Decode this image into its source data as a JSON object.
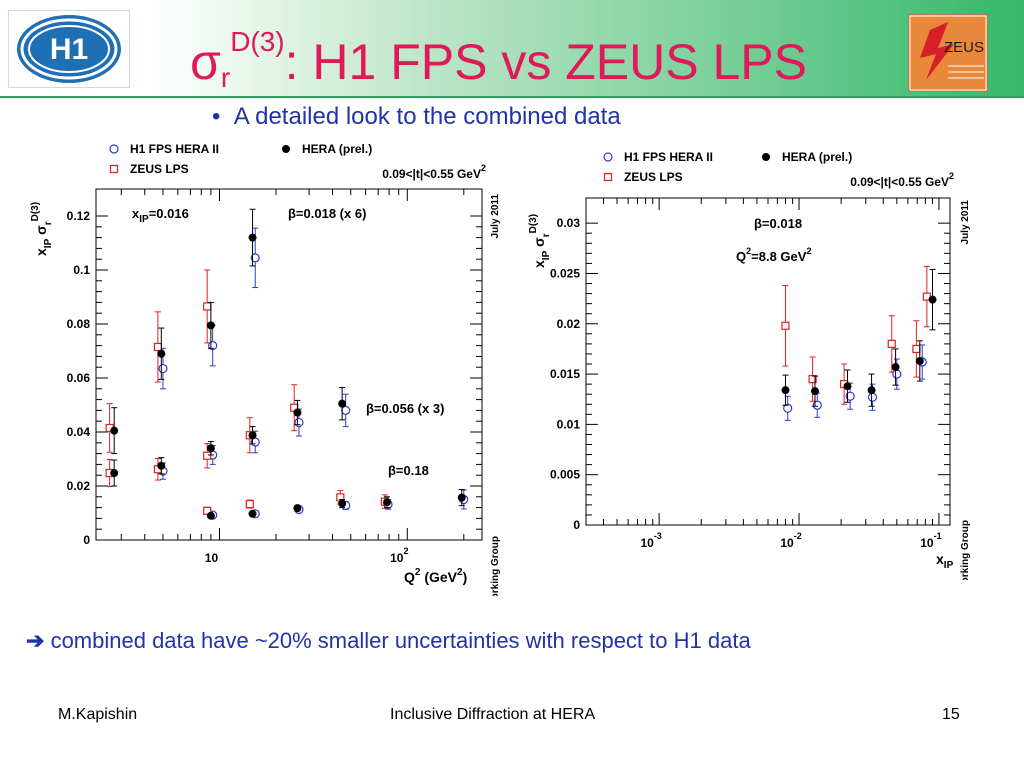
{
  "title": {
    "main": "σ",
    "sub": "r",
    "sup": "D(3)",
    "rest": ": H1 FPS vs ZEUS LPS"
  },
  "logos": {
    "h1": "H1",
    "zeus": "ZEUS"
  },
  "bullet": "A detailed look to the combined data",
  "note": "combined data have ~20% smaller uncertainties with respect to H1 data",
  "footer": {
    "author": "M.Kapishin",
    "center": "Inclusive Diffraction at HERA",
    "page": "15"
  },
  "colors": {
    "title": "#e0195a",
    "text": "#2233aa",
    "h1": "#2a3cc8",
    "zeus": "#e02020",
    "hera": "#000000"
  },
  "chart_data": [
    {
      "type": "scatter",
      "x_scale": "log",
      "xlim": [
        2.2,
        250
      ],
      "ylim": [
        0,
        0.13
      ],
      "y_ticks": [
        0,
        0.02,
        0.04,
        0.06,
        0.08,
        0.1,
        0.12
      ],
      "y_tick_labels": [
        "0",
        "0.02",
        "0.04",
        "0.06",
        "0.08",
        "0.1",
        "0.12"
      ],
      "x_tick_labels": [
        {
          "value": 10,
          "base": "10",
          "exp": ""
        },
        {
          "value": 100,
          "base": "10",
          "exp": "2"
        }
      ],
      "xlabel": {
        "base": "Q",
        "sup": "2",
        "rest": " (GeV",
        "sup2": "2",
        "end": ")"
      },
      "ylabel": {
        "x": "x",
        "xsub": "IP",
        "sigma": "σ",
        "sub": "r",
        "sup": "D(3)"
      },
      "legend": [
        {
          "marker": "open-circle",
          "label": "H1 FPS HERA II"
        },
        {
          "marker": "filled-circle",
          "label": "HERA (prel.)"
        },
        {
          "marker": "open-square",
          "label": "ZEUS LPS"
        }
      ],
      "t_range": "0.09<|t|<0.55 GeV",
      "t_range_sup": "2",
      "side_labels": {
        "right_top": "July 2011",
        "right_mid": "HERA Diffraction Working Group"
      },
      "annotations": {
        "xip": {
          "base": "x",
          "sub": "IP",
          "rest": "=0.016"
        },
        "beta1": "β=0.018 (x 6)",
        "beta2": "β=0.056 (x 3)",
        "beta3": "β=0.18"
      },
      "series": [
        {
          "name": "H1 FPS HERA II",
          "marker": "open-circle",
          "points": [
            {
              "x": 5.0,
              "y": 0.0635,
              "err": 0.0075
            },
            {
              "x": 9.2,
              "y": 0.072,
              "err": 0.0075
            },
            {
              "x": 15.5,
              "y": 0.1045,
              "err": 0.011
            },
            {
              "x": 5.0,
              "y": 0.0255,
              "err": 0.003
            },
            {
              "x": 9.2,
              "y": 0.0315,
              "err": 0.0035
            },
            {
              "x": 15.5,
              "y": 0.0363,
              "err": 0.004
            },
            {
              "x": 26.5,
              "y": 0.0435,
              "err": 0.005
            },
            {
              "x": 47,
              "y": 0.048,
              "err": 0.006
            },
            {
              "x": 9.2,
              "y": 0.0092,
              "err": 0.001
            },
            {
              "x": 15.5,
              "y": 0.0097,
              "err": 0.001
            },
            {
              "x": 26.5,
              "y": 0.0113,
              "err": 0.0012
            },
            {
              "x": 47,
              "y": 0.0128,
              "err": 0.0015
            },
            {
              "x": 79,
              "y": 0.0132,
              "err": 0.0018
            },
            {
              "x": 200,
              "y": 0.015,
              "err": 0.0035
            }
          ]
        },
        {
          "name": "ZEUS LPS",
          "marker": "open-square",
          "points": [
            {
              "x": 2.6,
              "y": 0.0415,
              "err": 0.009
            },
            {
              "x": 4.7,
              "y": 0.0715,
              "err": 0.013
            },
            {
              "x": 8.6,
              "y": 0.0865,
              "err": 0.0135
            },
            {
              "x": 2.6,
              "y": 0.0248,
              "err": 0.005
            },
            {
              "x": 4.7,
              "y": 0.0262,
              "err": 0.004
            },
            {
              "x": 8.6,
              "y": 0.0312,
              "err": 0.0045
            },
            {
              "x": 14.5,
              "y": 0.0388,
              "err": 0.0065
            },
            {
              "x": 25,
              "y": 0.049,
              "err": 0.0085
            },
            {
              "x": 8.6,
              "y": 0.0108,
              "err": 0.0013
            },
            {
              "x": 14.5,
              "y": 0.0133,
              "err": 0.0015
            },
            {
              "x": 44,
              "y": 0.0158,
              "err": 0.0025
            },
            {
              "x": 76,
              "y": 0.0142,
              "err": 0.0025
            }
          ]
        },
        {
          "name": "HERA (prel.)",
          "marker": "filled-circle",
          "points": [
            {
              "x": 2.75,
              "y": 0.0405,
              "err": 0.0085
            },
            {
              "x": 4.9,
              "y": 0.069,
              "err": 0.0095
            },
            {
              "x": 9.0,
              "y": 0.0795,
              "err": 0.0085
            },
            {
              "x": 15.0,
              "y": 0.112,
              "err": 0.0105
            },
            {
              "x": 2.75,
              "y": 0.0248,
              "err": 0.0048
            },
            {
              "x": 4.9,
              "y": 0.0275,
              "err": 0.003
            },
            {
              "x": 9.0,
              "y": 0.034,
              "err": 0.0025
            },
            {
              "x": 15.0,
              "y": 0.0388,
              "err": 0.0032
            },
            {
              "x": 26,
              "y": 0.0472,
              "err": 0.0045
            },
            {
              "x": 45,
              "y": 0.0505,
              "err": 0.006
            },
            {
              "x": 9.0,
              "y": 0.009,
              "err": 0.0008
            },
            {
              "x": 15.0,
              "y": 0.0097,
              "err": 0.0008
            },
            {
              "x": 26,
              "y": 0.0118,
              "err": 0.001
            },
            {
              "x": 45,
              "y": 0.0135,
              "err": 0.0015
            },
            {
              "x": 78,
              "y": 0.014,
              "err": 0.002
            },
            {
              "x": 195,
              "y": 0.0157,
              "err": 0.003
            }
          ]
        }
      ]
    },
    {
      "type": "scatter",
      "x_scale": "log",
      "xlim": [
        0.0003,
        0.12
      ],
      "ylim": [
        0,
        0.0325
      ],
      "y_ticks": [
        0,
        0.005,
        0.01,
        0.015,
        0.02,
        0.025,
        0.03
      ],
      "y_tick_labels": [
        "0",
        "0.005",
        "0.01",
        "0.015",
        "0.02",
        "0.025",
        "0.03"
      ],
      "x_tick_labels": [
        {
          "value": 0.001,
          "base": "10",
          "exp": "-3"
        },
        {
          "value": 0.01,
          "base": "10",
          "exp": "-2"
        },
        {
          "value": 0.1,
          "base": "10",
          "exp": "-1"
        }
      ],
      "xlabel": {
        "base": "x",
        "sub": "IP"
      },
      "ylabel": {
        "x": "x",
        "xsub": "IP",
        "sigma": "σ",
        "sub": "r",
        "sup": "D(3)"
      },
      "legend": [
        {
          "marker": "open-circle",
          "label": "H1 FPS HERA II"
        },
        {
          "marker": "filled-circle",
          "label": "HERA (prel.)"
        },
        {
          "marker": "open-square",
          "label": "ZEUS LPS"
        }
      ],
      "t_range": "0.09<|t|<0.55 GeV",
      "t_range_sup": "2",
      "side_labels": {
        "right_top": "July 2011",
        "right_mid": "HERA Diffraction Working Group"
      },
      "annotations": {
        "beta": "β=0.018",
        "q2": {
          "base": "Q",
          "sup": "2",
          "rest": "=8.8 GeV",
          "sup2": "2"
        }
      },
      "series": [
        {
          "name": "ZEUS LPS",
          "marker": "open-square",
          "points": [
            {
              "x": 0.008,
              "y": 0.0198,
              "err": 0.004
            },
            {
              "x": 0.0125,
              "y": 0.0145,
              "err": 0.0022
            },
            {
              "x": 0.021,
              "y": 0.014,
              "err": 0.002
            },
            {
              "x": 0.046,
              "y": 0.018,
              "err": 0.0028
            },
            {
              "x": 0.069,
              "y": 0.0175,
              "err": 0.0028
            },
            {
              "x": 0.082,
              "y": 0.0227,
              "err": 0.003
            }
          ]
        },
        {
          "name": "H1 FPS HERA II",
          "marker": "open-circle",
          "points": [
            {
              "x": 0.0083,
              "y": 0.0116,
              "err": 0.0012
            },
            {
              "x": 0.0135,
              "y": 0.0119,
              "err": 0.0012
            },
            {
              "x": 0.0232,
              "y": 0.0128,
              "err": 0.0013
            },
            {
              "x": 0.0335,
              "y": 0.0127,
              "err": 0.0013
            },
            {
              "x": 0.05,
              "y": 0.015,
              "err": 0.0015
            },
            {
              "x": 0.076,
              "y": 0.0162,
              "err": 0.0017
            }
          ]
        },
        {
          "name": "HERA (prel.)",
          "marker": "filled-circle",
          "points": [
            {
              "x": 0.008,
              "y": 0.0134,
              "err": 0.0015
            },
            {
              "x": 0.013,
              "y": 0.0133,
              "err": 0.0015
            },
            {
              "x": 0.0222,
              "y": 0.0138,
              "err": 0.0016
            },
            {
              "x": 0.033,
              "y": 0.0134,
              "err": 0.0016
            },
            {
              "x": 0.049,
              "y": 0.0157,
              "err": 0.0018
            },
            {
              "x": 0.073,
              "y": 0.0163,
              "err": 0.002
            },
            {
              "x": 0.09,
              "y": 0.0224,
              "err": 0.003
            }
          ]
        }
      ]
    }
  ]
}
